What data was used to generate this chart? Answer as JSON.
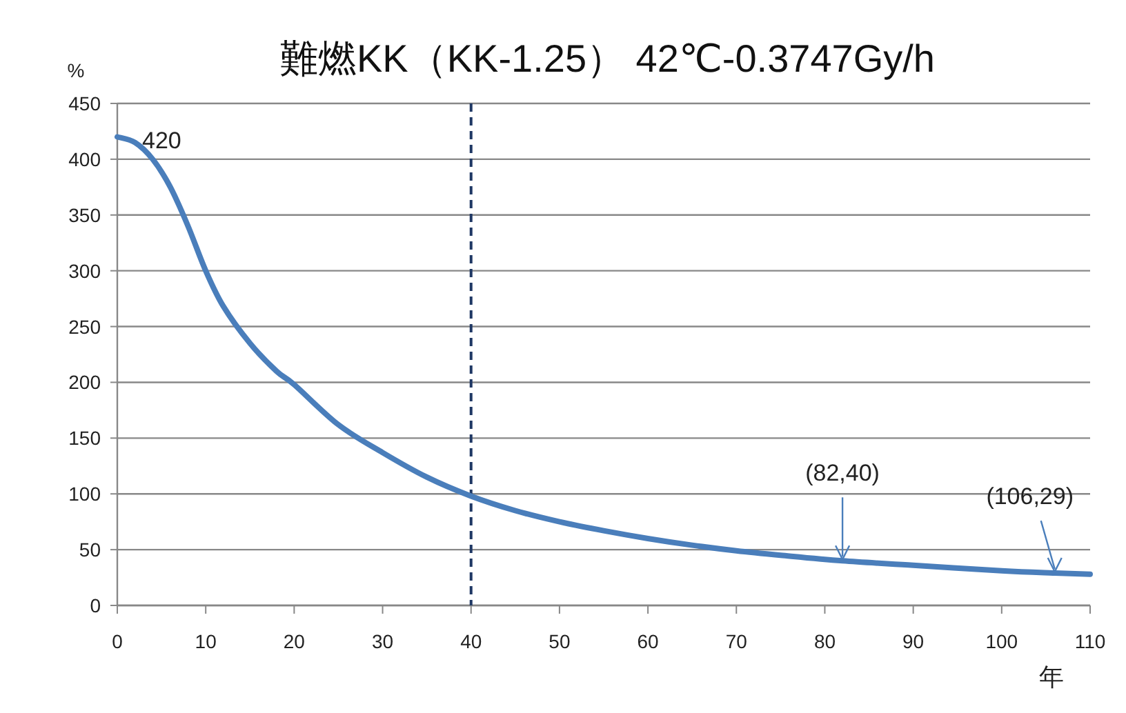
{
  "chart_data": {
    "type": "line",
    "title": "難燃KK（KK-1.25） 42℃-0.3747Gy/h",
    "ylabel": "%",
    "xlabel": "年",
    "x": [
      0,
      2,
      4,
      6,
      8,
      10,
      12,
      15,
      18,
      20,
      25,
      30,
      35,
      40,
      45,
      50,
      55,
      60,
      65,
      70,
      75,
      82,
      90,
      100,
      106,
      110
    ],
    "series": [
      {
        "color": "#4a7ebb",
        "values": [
          420,
          415,
          400,
          375,
          340,
          300,
          268,
          235,
          210,
          198,
          162,
          137,
          115,
          98,
          85,
          75,
          67,
          60,
          54,
          49,
          45,
          40,
          36,
          31,
          29,
          28
        ]
      }
    ],
    "xlim": [
      0,
      110
    ],
    "xticks": [
      0,
      10,
      20,
      30,
      40,
      50,
      60,
      70,
      80,
      90,
      100,
      110
    ],
    "ylim": [
      0,
      450
    ],
    "yticks": [
      0,
      50,
      100,
      150,
      200,
      250,
      300,
      350,
      400,
      450
    ],
    "grid": "y",
    "marker": "none",
    "line_style": "solid",
    "ref_lines": [
      {
        "axis": "x",
        "value": 40,
        "color": "#1f3864",
        "line_style": "dashed"
      }
    ],
    "annotations": [
      {
        "text": "420",
        "x": 0,
        "y": 420
      },
      {
        "text": "(82,40)",
        "x": 82,
        "y": 40
      },
      {
        "text": "(106,29)",
        "x": 106,
        "y": 29
      }
    ]
  }
}
